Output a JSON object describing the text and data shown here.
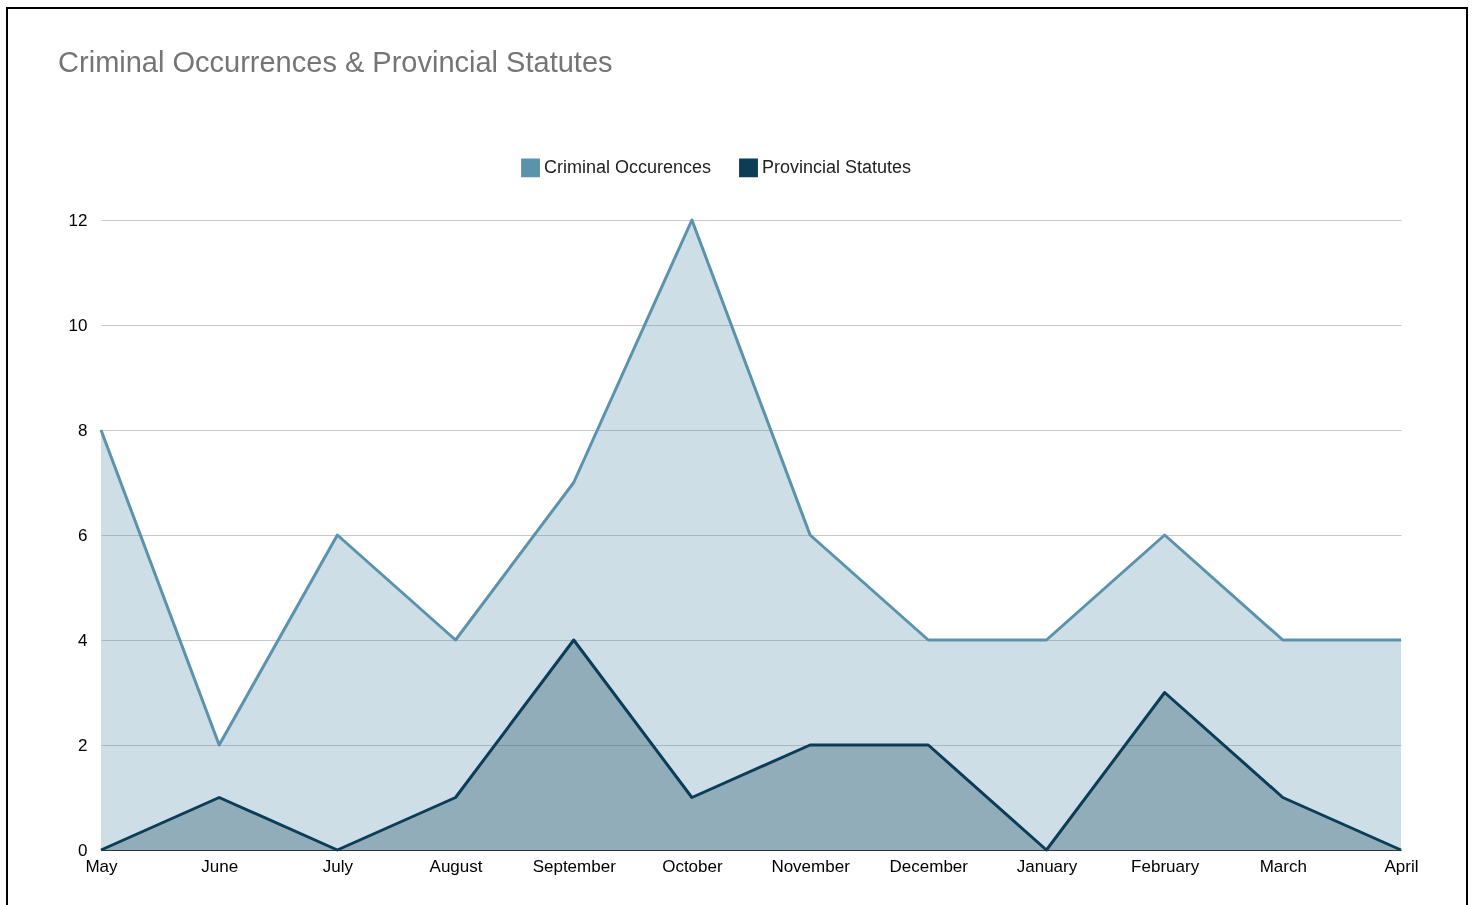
{
  "chart_data": {
    "type": "area",
    "title": "Criminal Occurrences & Provincial Statutes",
    "categories": [
      "May",
      "June",
      "July",
      "August",
      "September",
      "October",
      "November",
      "December",
      "January",
      "February",
      "March",
      "April"
    ],
    "series": [
      {
        "name": "Criminal Occurences",
        "color": "#5b93ad",
        "values": [
          8,
          2,
          6,
          4,
          7,
          12,
          6,
          4,
          4,
          6,
          4,
          4
        ]
      },
      {
        "name": "Provincial Statutes",
        "color": "#0b3d57",
        "values": [
          0,
          1,
          0,
          1,
          4,
          1,
          2,
          2,
          0,
          3,
          1,
          0
        ]
      }
    ],
    "ylim": [
      0,
      12
    ],
    "yticks": [
      0,
      2,
      4,
      6,
      8,
      10,
      12
    ],
    "grid": "y",
    "legend": "top"
  }
}
